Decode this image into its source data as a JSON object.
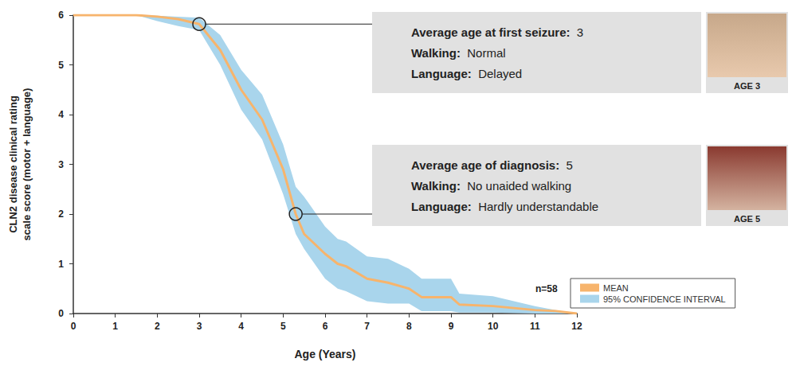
{
  "chart_data": {
    "type": "line",
    "x_label": "Age (Years)",
    "y_label": "CLN2 disease clinical rating\nscale score (motor + language)",
    "xlim": [
      0,
      12
    ],
    "xticks": [
      0,
      1,
      2,
      3,
      4,
      5,
      6,
      7,
      8,
      9,
      10,
      11,
      12
    ],
    "ylim": [
      0,
      6
    ],
    "yticks": [
      0,
      1,
      2,
      3,
      4,
      5,
      6
    ],
    "grid": false,
    "legend": "lower right",
    "x": [
      0,
      1,
      1.5,
      2,
      2.5,
      3,
      3.5,
      4,
      4.5,
      5,
      5.3,
      5.5,
      6,
      6.3,
      6.5,
      7,
      7.5,
      8,
      8.3,
      9,
      9.2,
      10,
      11,
      11.5,
      12
    ],
    "series": [
      {
        "name": "MEAN",
        "color": "#f7b46c",
        "values": [
          6,
          6,
          6,
          5.97,
          5.92,
          5.82,
          5.3,
          4.5,
          3.9,
          2.9,
          2.0,
          1.6,
          1.2,
          1.0,
          0.95,
          0.7,
          0.62,
          0.5,
          0.33,
          0.33,
          0.18,
          0.15,
          0.07,
          0.05,
          0
        ]
      }
    ],
    "confidence_interval": {
      "name": "95% CONFIDENCE INTERVAL",
      "color": "#a9d5ec",
      "lower": [
        6,
        6,
        6,
        5.88,
        5.78,
        5.7,
        5.0,
        4.1,
        3.5,
        2.4,
        1.6,
        1.3,
        0.7,
        0.5,
        0.45,
        0.25,
        0.2,
        0.2,
        0.05,
        0.05,
        0.02,
        0.02,
        0,
        0,
        0
      ],
      "upper": [
        6,
        6,
        6,
        5.99,
        5.97,
        5.95,
        5.6,
        4.9,
        4.4,
        3.4,
        2.55,
        2.35,
        1.75,
        1.5,
        1.45,
        1.15,
        1.1,
        0.9,
        0.7,
        0.7,
        0.4,
        0.35,
        0.15,
        0.07,
        0
      ]
    },
    "sample_size": "n=58",
    "annotations": [
      {
        "x": 3,
        "y": 5.82,
        "rows": [
          [
            "Average age at first seizure:",
            "3"
          ],
          [
            "Walking:",
            "Normal"
          ],
          [
            "Language:",
            "Delayed"
          ]
        ],
        "photo_caption": "AGE 3"
      },
      {
        "x": 5.3,
        "y": 2.0,
        "rows": [
          [
            "Average age of diagnosis:",
            "5"
          ],
          [
            "Walking:",
            "No unaided walking"
          ],
          [
            "Language:",
            "Hardly understandable"
          ]
        ],
        "photo_caption": "AGE 5"
      }
    ]
  }
}
